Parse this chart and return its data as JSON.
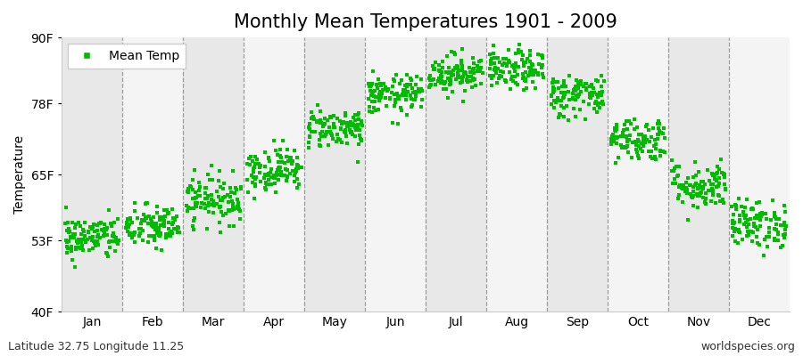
{
  "title": "Monthly Mean Temperatures 1901 - 2009",
  "ylabel": "Temperature",
  "ytick_labels": [
    "40F",
    "53F",
    "65F",
    "78F",
    "90F"
  ],
  "ytick_values": [
    40,
    53,
    65,
    78,
    90
  ],
  "ylim": [
    40,
    90
  ],
  "months": [
    "Jan",
    "Feb",
    "Mar",
    "Apr",
    "May",
    "Jun",
    "Jul",
    "Aug",
    "Sep",
    "Oct",
    "Nov",
    "Dec"
  ],
  "month_mean_F": [
    53.5,
    55.5,
    60.5,
    66.0,
    73.5,
    79.5,
    83.5,
    84.0,
    79.5,
    71.5,
    63.0,
    56.0
  ],
  "month_std_F": [
    2.0,
    2.0,
    2.2,
    2.0,
    1.8,
    1.8,
    1.8,
    1.8,
    2.0,
    2.0,
    2.2,
    2.2
  ],
  "n_years": 109,
  "dot_color": "#00bb00",
  "dot_size": 7,
  "bg_color": "#ffffff",
  "col_band_dark": "#e8e8e8",
  "col_band_light": "#f4f4f4",
  "title_fontsize": 15,
  "axis_fontsize": 10,
  "tick_fontsize": 10,
  "legend_label": "Mean Temp",
  "footer_left": "Latitude 32.75 Longitude 11.25",
  "footer_right": "worldspecies.org",
  "footer_fontsize": 9
}
